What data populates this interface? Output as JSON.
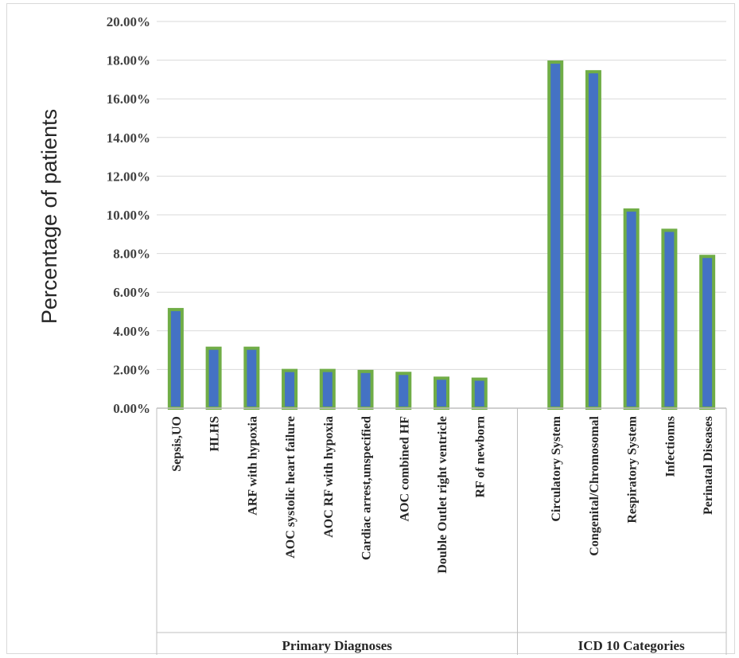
{
  "chart_data": {
    "type": "bar",
    "ylabel": "Percentage of patients",
    "ylim": [
      0,
      20
    ],
    "y_ticks": [
      "0.00%",
      "2.00%",
      "4.00%",
      "6.00%",
      "8.00%",
      "10.00%",
      "12.00%",
      "14.00%",
      "16.00%",
      "18.00%",
      "20.00%"
    ],
    "grid": true,
    "bar_color": "#4472c4",
    "bar_outline_color": "#70ad47",
    "groups": [
      {
        "label": "Primary Diagnoses",
        "categories": [
          "Sepsis,UO",
          "HLHS",
          "ARF with hypoxia",
          "AOC systolic heart failure",
          "AOC RF with hypoxia",
          "Cardiac arrest,unspecified",
          "AOC combined HF",
          "Double Outlet right ventricle",
          "RF of newborn"
        ],
        "values": [
          5.1,
          3.1,
          3.1,
          1.95,
          1.95,
          1.9,
          1.8,
          1.55,
          1.5
        ]
      },
      {
        "label": "ICD 10 Categories",
        "categories": [
          "Circulatory System",
          "Congenital/Chromosomal",
          "Respiratory System",
          "Infectionns",
          "Perinatal Diseases"
        ],
        "values": [
          17.9,
          17.4,
          10.25,
          9.2,
          7.85
        ]
      }
    ]
  }
}
